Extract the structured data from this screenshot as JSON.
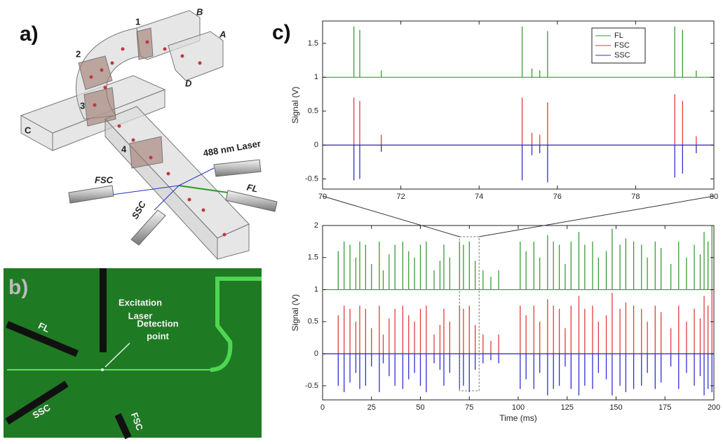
{
  "panel_labels": [
    "a)",
    "b)",
    "c)"
  ],
  "diagram_a": {
    "section_labels": [
      "1",
      "2",
      "3",
      "4"
    ],
    "port_labels": [
      "A",
      "B",
      "C",
      "D"
    ],
    "laser_label": "488 nm Laser",
    "detector_labels": [
      "FSC",
      "FL",
      "SSC"
    ]
  },
  "image_b": {
    "excitation_label": [
      "Excitation",
      "Laser"
    ],
    "detection_label": [
      "Detection",
      "point"
    ],
    "detector_labels": [
      "FL",
      "SSC",
      "FSC"
    ]
  },
  "chart_data": [
    {
      "type": "stem",
      "x": [
        70.8,
        70.95,
        71.5,
        75.1,
        75.35,
        75.55,
        75.75,
        79.0,
        79.2,
        79.55
      ],
      "series": [
        {
          "name": "FL",
          "color": "#3a9a3a",
          "baseline": 1,
          "values": [
            1.75,
            1.7,
            1.1,
            1.75,
            1.13,
            1.1,
            1.68,
            1.75,
            1.7,
            1.1
          ]
        },
        {
          "name": "FSC",
          "color": "#e03c3c",
          "baseline": 0,
          "values": [
            0.7,
            0.65,
            0.15,
            0.7,
            0.18,
            0.15,
            0.63,
            0.75,
            0.65,
            0.13
          ]
        },
        {
          "name": "SSC",
          "color": "#2f2fd0",
          "baseline": 0,
          "values": [
            -0.52,
            -0.5,
            -0.1,
            -0.52,
            -0.15,
            -0.12,
            -0.55,
            -0.48,
            -0.42,
            -0.12
          ]
        }
      ],
      "xlim": [
        70,
        80
      ],
      "ylim": [
        -0.65,
        1.83
      ],
      "xticks": [
        70,
        72,
        74,
        76,
        78,
        80
      ],
      "yticks": [
        -0.5,
        0,
        0.5,
        1,
        1.5
      ],
      "ylabel": "Signal (V)",
      "legend": "upper right"
    },
    {
      "type": "stem",
      "x": [
        8,
        11,
        14,
        17,
        19,
        22,
        25,
        29,
        31,
        34,
        37,
        41,
        44,
        47,
        50,
        53,
        57,
        60,
        62,
        65,
        70,
        72,
        75,
        78,
        82,
        86,
        90,
        101,
        104,
        108,
        111,
        115,
        118,
        121,
        124,
        127,
        131,
        134,
        138,
        141,
        145,
        148,
        152,
        155,
        159,
        163,
        166,
        170,
        173,
        178,
        182,
        186,
        190,
        193,
        195,
        197,
        199
      ],
      "series": [
        {
          "name": "FL",
          "color": "#3a9a3a",
          "baseline": 1,
          "values": [
            1.6,
            1.75,
            1.7,
            1.5,
            1.75,
            1.7,
            1.4,
            1.75,
            1.3,
            1.55,
            1.7,
            1.75,
            1.6,
            1.5,
            1.7,
            1.75,
            1.3,
            1.45,
            1.7,
            1.5,
            1.75,
            1.7,
            1.75,
            1.45,
            1.3,
            1.2,
            1.3,
            1.75,
            1.6,
            1.75,
            1.5,
            1.85,
            1.75,
            1.7,
            1.4,
            1.75,
            1.9,
            1.7,
            1.75,
            1.5,
            1.6,
            1.95,
            1.7,
            1.8,
            1.75,
            1.7,
            1.5,
            1.75,
            1.65,
            1.4,
            1.75,
            1.5,
            1.7,
            1.55,
            1.9,
            1.75,
            2.0
          ]
        },
        {
          "name": "FSC",
          "color": "#e03c3c",
          "baseline": 0,
          "values": [
            0.6,
            0.75,
            0.7,
            0.5,
            0.75,
            0.7,
            0.4,
            0.75,
            0.3,
            0.55,
            0.7,
            0.75,
            0.6,
            0.5,
            0.7,
            0.75,
            0.3,
            0.45,
            0.7,
            0.5,
            0.75,
            0.7,
            0.75,
            0.45,
            0.3,
            0.2,
            0.3,
            0.75,
            0.6,
            0.75,
            0.5,
            0.85,
            0.75,
            0.7,
            0.4,
            0.75,
            0.9,
            0.7,
            0.75,
            0.5,
            0.6,
            0.95,
            0.7,
            0.8,
            0.75,
            0.7,
            0.5,
            0.75,
            0.65,
            0.4,
            0.75,
            0.5,
            0.7,
            0.55,
            0.9,
            0.75,
            1.0
          ]
        },
        {
          "name": "SSC",
          "color": "#2f2fd0",
          "baseline": 0,
          "values": [
            -0.5,
            -0.6,
            -0.45,
            -0.3,
            -0.55,
            -0.5,
            -0.2,
            -0.6,
            -0.15,
            -0.35,
            -0.5,
            -0.55,
            -0.4,
            -0.3,
            -0.5,
            -0.6,
            -0.15,
            -0.25,
            -0.5,
            -0.3,
            -0.55,
            -0.5,
            -0.6,
            -0.25,
            -0.15,
            -0.1,
            -0.15,
            -0.55,
            -0.4,
            -0.55,
            -0.3,
            -0.65,
            -0.55,
            -0.5,
            -0.2,
            -0.55,
            -0.65,
            -0.5,
            -0.55,
            -0.3,
            -0.4,
            -0.65,
            -0.5,
            -0.6,
            -0.55,
            -0.5,
            -0.3,
            -0.55,
            -0.45,
            -0.2,
            -0.55,
            -0.3,
            -0.5,
            -0.35,
            -0.65,
            -0.55,
            -0.6
          ]
        }
      ],
      "xlim": [
        0,
        200
      ],
      "ylim": [
        -0.72,
        2
      ],
      "xticks": [
        0,
        25,
        50,
        75,
        100,
        125,
        150,
        175,
        200
      ],
      "yticks": [
        -0.5,
        0,
        0.5,
        1,
        1.5,
        2
      ],
      "xlabel": "Time (ms)",
      "ylabel": "Signal (V)",
      "zoom_xlim": [
        70,
        80
      ]
    }
  ]
}
